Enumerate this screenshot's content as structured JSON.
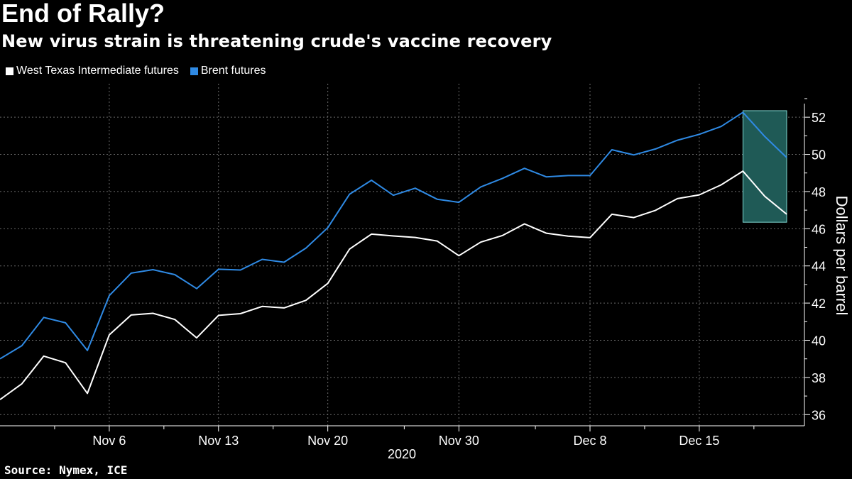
{
  "header": {
    "title": "End of Rally?",
    "subtitle": "New virus strain is threatening crude's vaccine recovery"
  },
  "legend": {
    "wti_label": "West Texas Intermediate futures",
    "brent_label": "Brent futures"
  },
  "colors": {
    "background": "#000000",
    "wti": "#ffffff",
    "brent": "#2f8ae4",
    "highlight_fill": "#1f5a56",
    "highlight_stroke": "#7fd8d2",
    "grid": "#6a6a6a"
  },
  "source": "Source: Nymex, ICE",
  "chart_data": {
    "type": "line",
    "title": "End of Rally?",
    "subtitle": "New virus strain is threatening crude's vaccine recovery",
    "xlabel": "2020",
    "ylabel": "Dollars per barrel",
    "ylim": [
      35.4,
      53.8
    ],
    "y_ticks": [
      36,
      38,
      40,
      42,
      44,
      46,
      48,
      50,
      52
    ],
    "x_tick_labels": [
      "Nov 6",
      "Nov 13",
      "Nov 20",
      "Nov 30",
      "Dec 8",
      "Dec 15"
    ],
    "x_tick_indices": [
      5,
      10,
      15,
      21,
      27,
      32
    ],
    "x_year_label": "2020",
    "grid": true,
    "legend_position": "top-left",
    "series": [
      {
        "name": "West Texas Intermediate futures",
        "values": [
          36.81,
          37.66,
          39.15,
          38.79,
          37.14,
          40.29,
          41.36,
          41.45,
          41.12,
          40.13,
          41.34,
          41.43,
          41.82,
          41.74,
          42.15,
          43.06,
          44.91,
          45.71,
          45.61,
          45.53,
          45.34,
          44.55,
          45.28,
          45.64,
          46.26,
          45.76,
          45.6,
          45.52,
          46.78,
          46.6,
          46.99,
          47.62,
          47.82,
          48.36,
          49.1,
          47.74,
          46.78
        ]
      },
      {
        "name": "Brent futures",
        "values": [
          39.0,
          39.71,
          41.23,
          40.94,
          39.45,
          42.4,
          43.61,
          43.8,
          43.53,
          42.78,
          43.82,
          43.78,
          44.35,
          44.2,
          44.96,
          46.06,
          47.86,
          48.61,
          47.8,
          48.18,
          47.59,
          47.42,
          48.25,
          48.71,
          49.25,
          48.79,
          48.86,
          48.86,
          50.25,
          49.97,
          50.29,
          50.76,
          51.08,
          51.5,
          52.26,
          50.96,
          49.83
        ]
      }
    ],
    "highlight": {
      "from_index": 34,
      "to_index": 36,
      "y_range": [
        46.35,
        52.35
      ]
    }
  }
}
